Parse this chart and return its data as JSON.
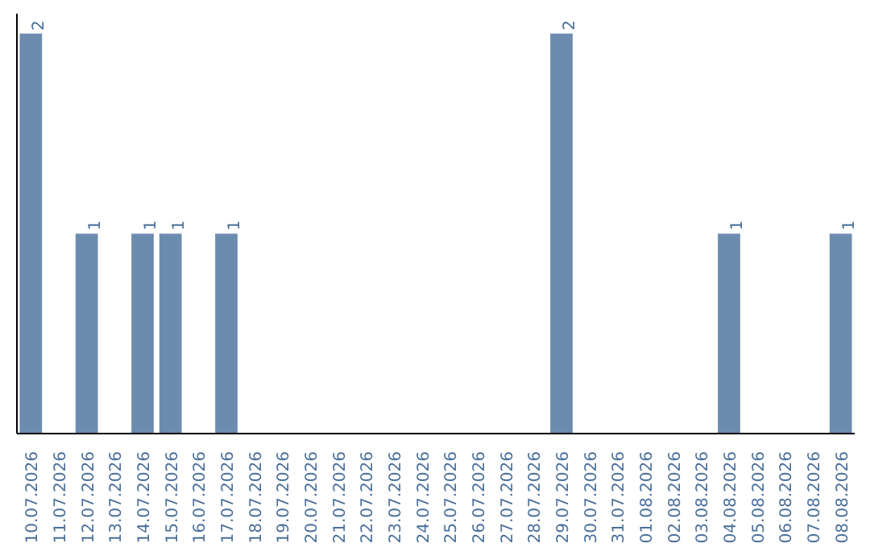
{
  "chart_data": {
    "type": "bar",
    "categories": [
      "10.07.2026",
      "11.07.2026",
      "12.07.2026",
      "13.07.2026",
      "14.07.2026",
      "15.07.2026",
      "16.07.2026",
      "17.07.2026",
      "18.07.2026",
      "19.07.2026",
      "20.07.2026",
      "21.07.2026",
      "22.07.2026",
      "23.07.2026",
      "24.07.2026",
      "25.07.2026",
      "26.07.2026",
      "27.07.2026",
      "28.07.2026",
      "29.07.2026",
      "30.07.2026",
      "31.07.2026",
      "01.08.2026",
      "02.08.2026",
      "03.08.2026",
      "04.08.2026",
      "05.08.2026",
      "06.08.2026",
      "07.08.2026",
      "08.08.2026"
    ],
    "values": [
      2,
      0,
      1,
      0,
      1,
      1,
      0,
      1,
      0,
      0,
      0,
      0,
      0,
      0,
      0,
      0,
      0,
      0,
      0,
      2,
      0,
      0,
      0,
      0,
      0,
      1,
      0,
      0,
      0,
      1
    ],
    "value_labels": [
      "2",
      null,
      "1",
      null,
      "1",
      "1",
      null,
      "1",
      null,
      null,
      null,
      null,
      null,
      null,
      null,
      null,
      null,
      null,
      null,
      "2",
      null,
      null,
      null,
      null,
      null,
      "1",
      null,
      null,
      null,
      "1"
    ],
    "color": "#6b8cae",
    "ylim": [
      0,
      2.1
    ],
    "tick_labels": "x",
    "grid": false
  }
}
